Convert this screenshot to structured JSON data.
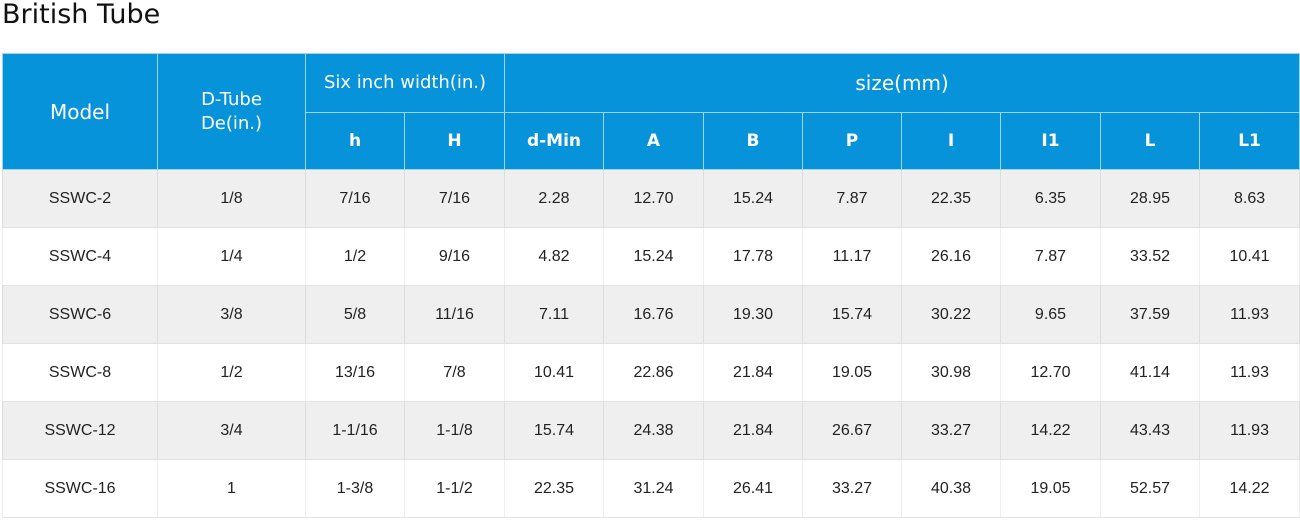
{
  "title": "British Tube",
  "headers": {
    "model": "Model",
    "dtube_line1": "D-Tube",
    "dtube_line2": "De(in.)",
    "six_inch": "Six inch width(in.)",
    "size": "size(mm)",
    "sub": [
      "h",
      "H",
      "d-Min",
      "A",
      "B",
      "P",
      "I",
      "I1",
      "L",
      "L1"
    ]
  },
  "rows": [
    [
      "SSWC-2",
      "1/8",
      "7/16",
      "7/16",
      "2.28",
      "12.70",
      "15.24",
      "7.87",
      "22.35",
      "6.35",
      "28.95",
      "8.63"
    ],
    [
      "SSWC-4",
      "1/4",
      "1/2",
      "9/16",
      "4.82",
      "15.24",
      "17.78",
      "11.17",
      "26.16",
      "7.87",
      "33.52",
      "10.41"
    ],
    [
      "SSWC-6",
      "3/8",
      "5/8",
      "11/16",
      "7.11",
      "16.76",
      "19.30",
      "15.74",
      "30.22",
      "9.65",
      "37.59",
      "11.93"
    ],
    [
      "SSWC-8",
      "1/2",
      "13/16",
      "7/8",
      "10.41",
      "22.86",
      "21.84",
      "19.05",
      "30.98",
      "12.70",
      "41.14",
      "11.93"
    ],
    [
      "SSWC-12",
      "3/4",
      "1-1/16",
      "1-1/8",
      "15.74",
      "24.38",
      "21.84",
      "26.67",
      "33.27",
      "14.22",
      "43.43",
      "11.93"
    ],
    [
      "SSWC-16",
      "1",
      "1-3/8",
      "1-1/2",
      "22.35",
      "31.24",
      "26.41",
      "33.27",
      "40.38",
      "19.05",
      "52.57",
      "14.22"
    ]
  ],
  "colors": {
    "header_bg": "#0793d9",
    "header_text": "#ffffff",
    "stripe_bg": "#efefef",
    "text": "#222222"
  }
}
